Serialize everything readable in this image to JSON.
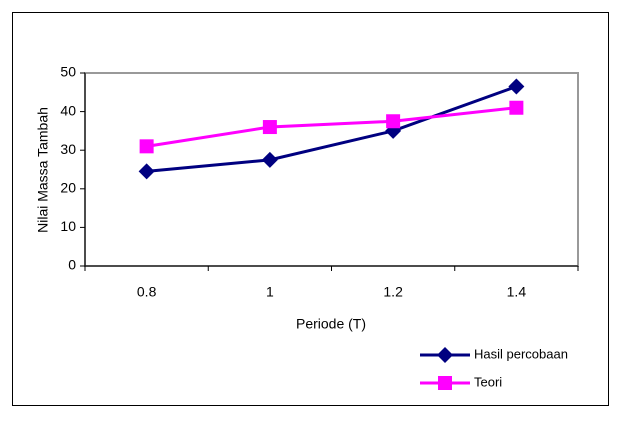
{
  "chart_data": {
    "type": "line",
    "y_label": "Nilai Massa Tambah",
    "x_label": "Periode (T)",
    "categories": [
      "0.8",
      "1",
      "1.2",
      "1.4"
    ],
    "series": [
      {
        "name": "Hasil percobaan",
        "color": "#000080",
        "marker": "diamond",
        "values": [
          24.5,
          27.5,
          35,
          46.5
        ]
      },
      {
        "name": "Teori",
        "color": "#ff00ff",
        "marker": "square",
        "values": [
          31,
          36,
          37.5,
          41
        ]
      }
    ],
    "ylim": [
      0,
      50
    ],
    "yticks": [
      0,
      10,
      20,
      30,
      40,
      50
    ],
    "grid": false,
    "legend": "bottom-right"
  }
}
